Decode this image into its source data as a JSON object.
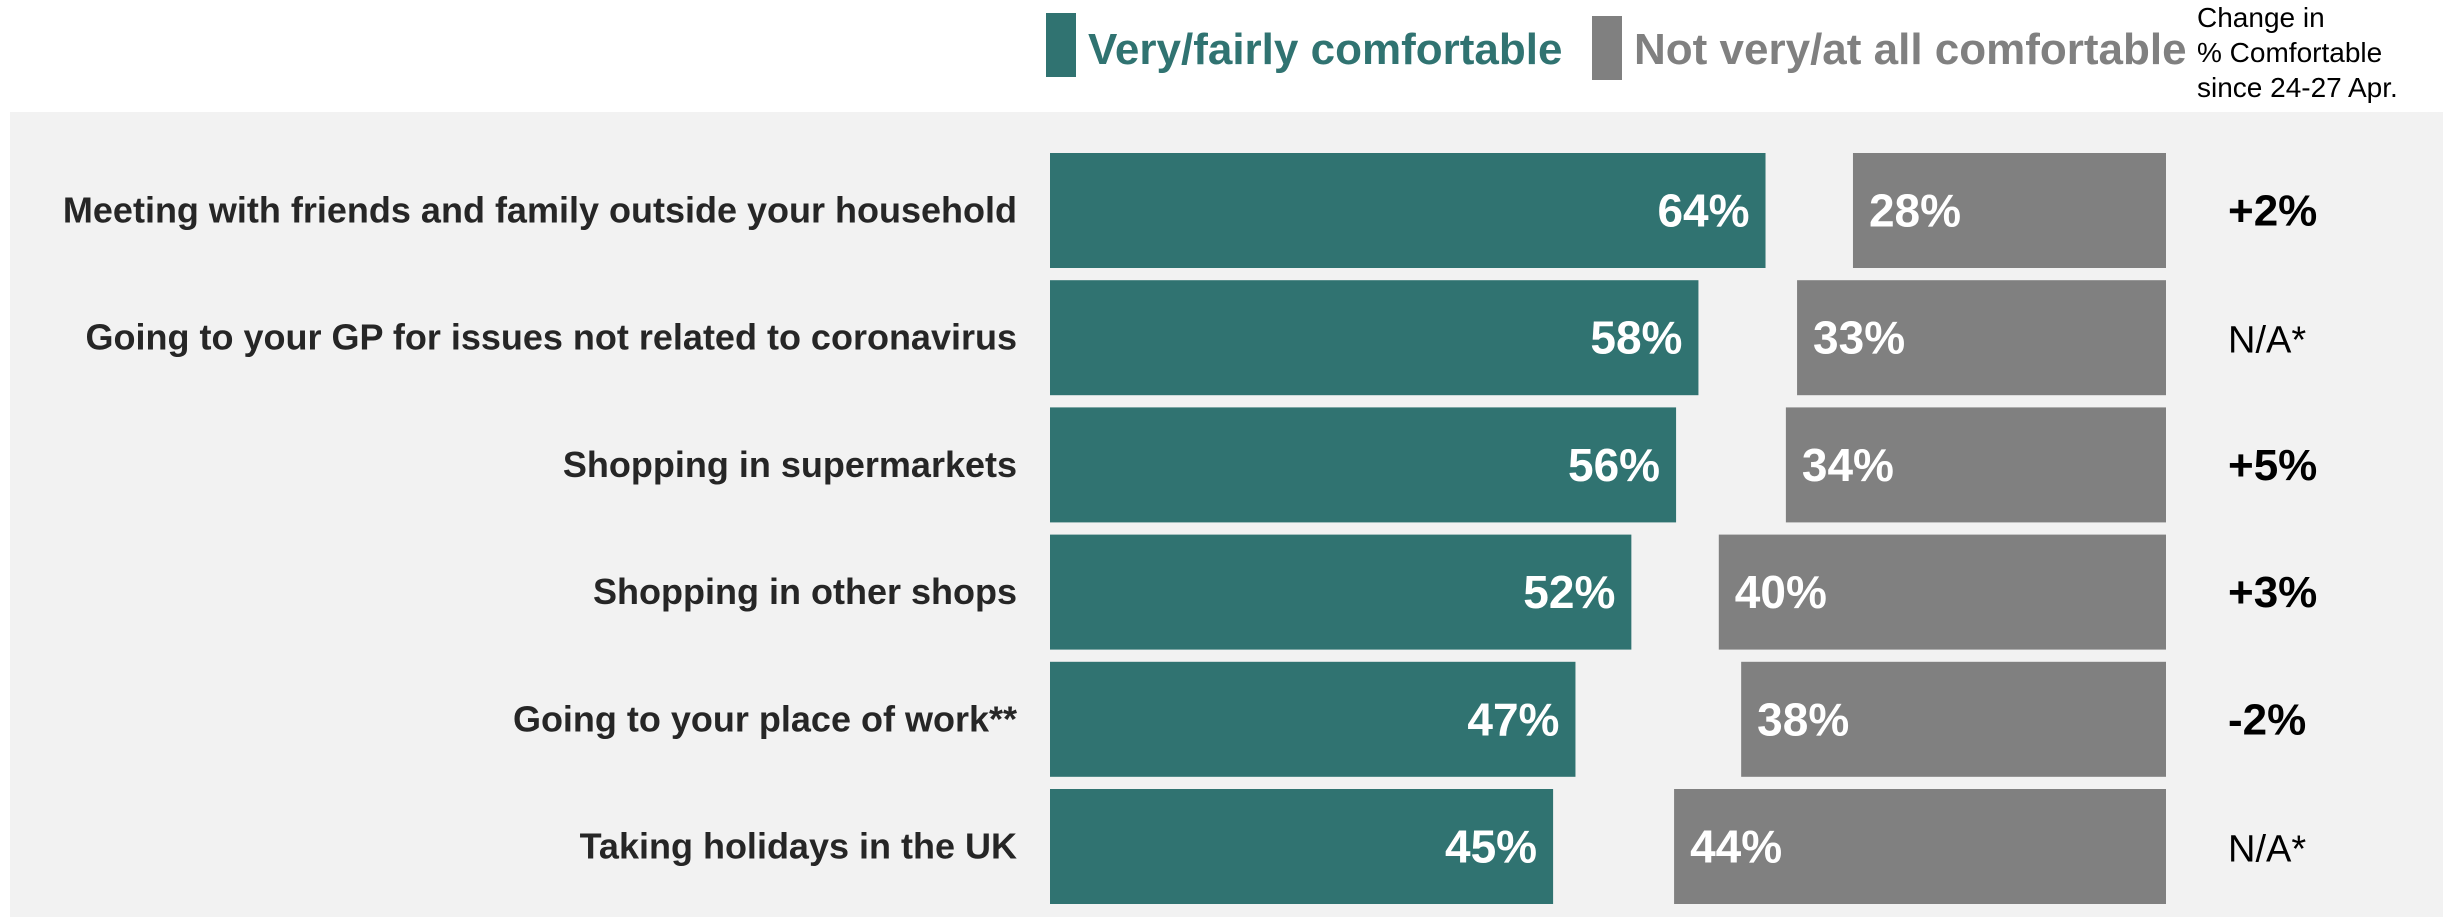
{
  "legend": {
    "comfortable": "Very/fairly comfortable",
    "not_comfortable": "Not very/at all comfortable",
    "change_header": [
      "Change in",
      "% Comfortable",
      "since 24-27 Apr."
    ]
  },
  "colors": {
    "comfortable": "#307371",
    "not_comfortable": "#808080",
    "panel": "#f2f2f2"
  },
  "chart_data": {
    "type": "bar",
    "orientation": "horizontal",
    "categories": [
      "Meeting with friends and family outside your household",
      "Going to your GP for issues not related to coronavirus",
      "Shopping in supermarkets",
      "Shopping in other shops",
      "Going to your place of work**",
      "Taking holidays in the UK"
    ],
    "series": [
      {
        "name": "Very/fairly comfortable",
        "values": [
          64,
          58,
          56,
          52,
          47,
          45
        ],
        "labels": [
          "64%",
          "58%",
          "56%",
          "52%",
          "47%",
          "45%"
        ]
      },
      {
        "name": "Not very/at all comfortable",
        "values": [
          28,
          33,
          34,
          40,
          38,
          44
        ],
        "labels": [
          "28%",
          "33%",
          "34%",
          "40%",
          "38%",
          "44%"
        ]
      }
    ],
    "change": [
      "+2%",
      "N/A*",
      "+5%",
      "+3%",
      "-2%",
      "N/A*"
    ]
  }
}
